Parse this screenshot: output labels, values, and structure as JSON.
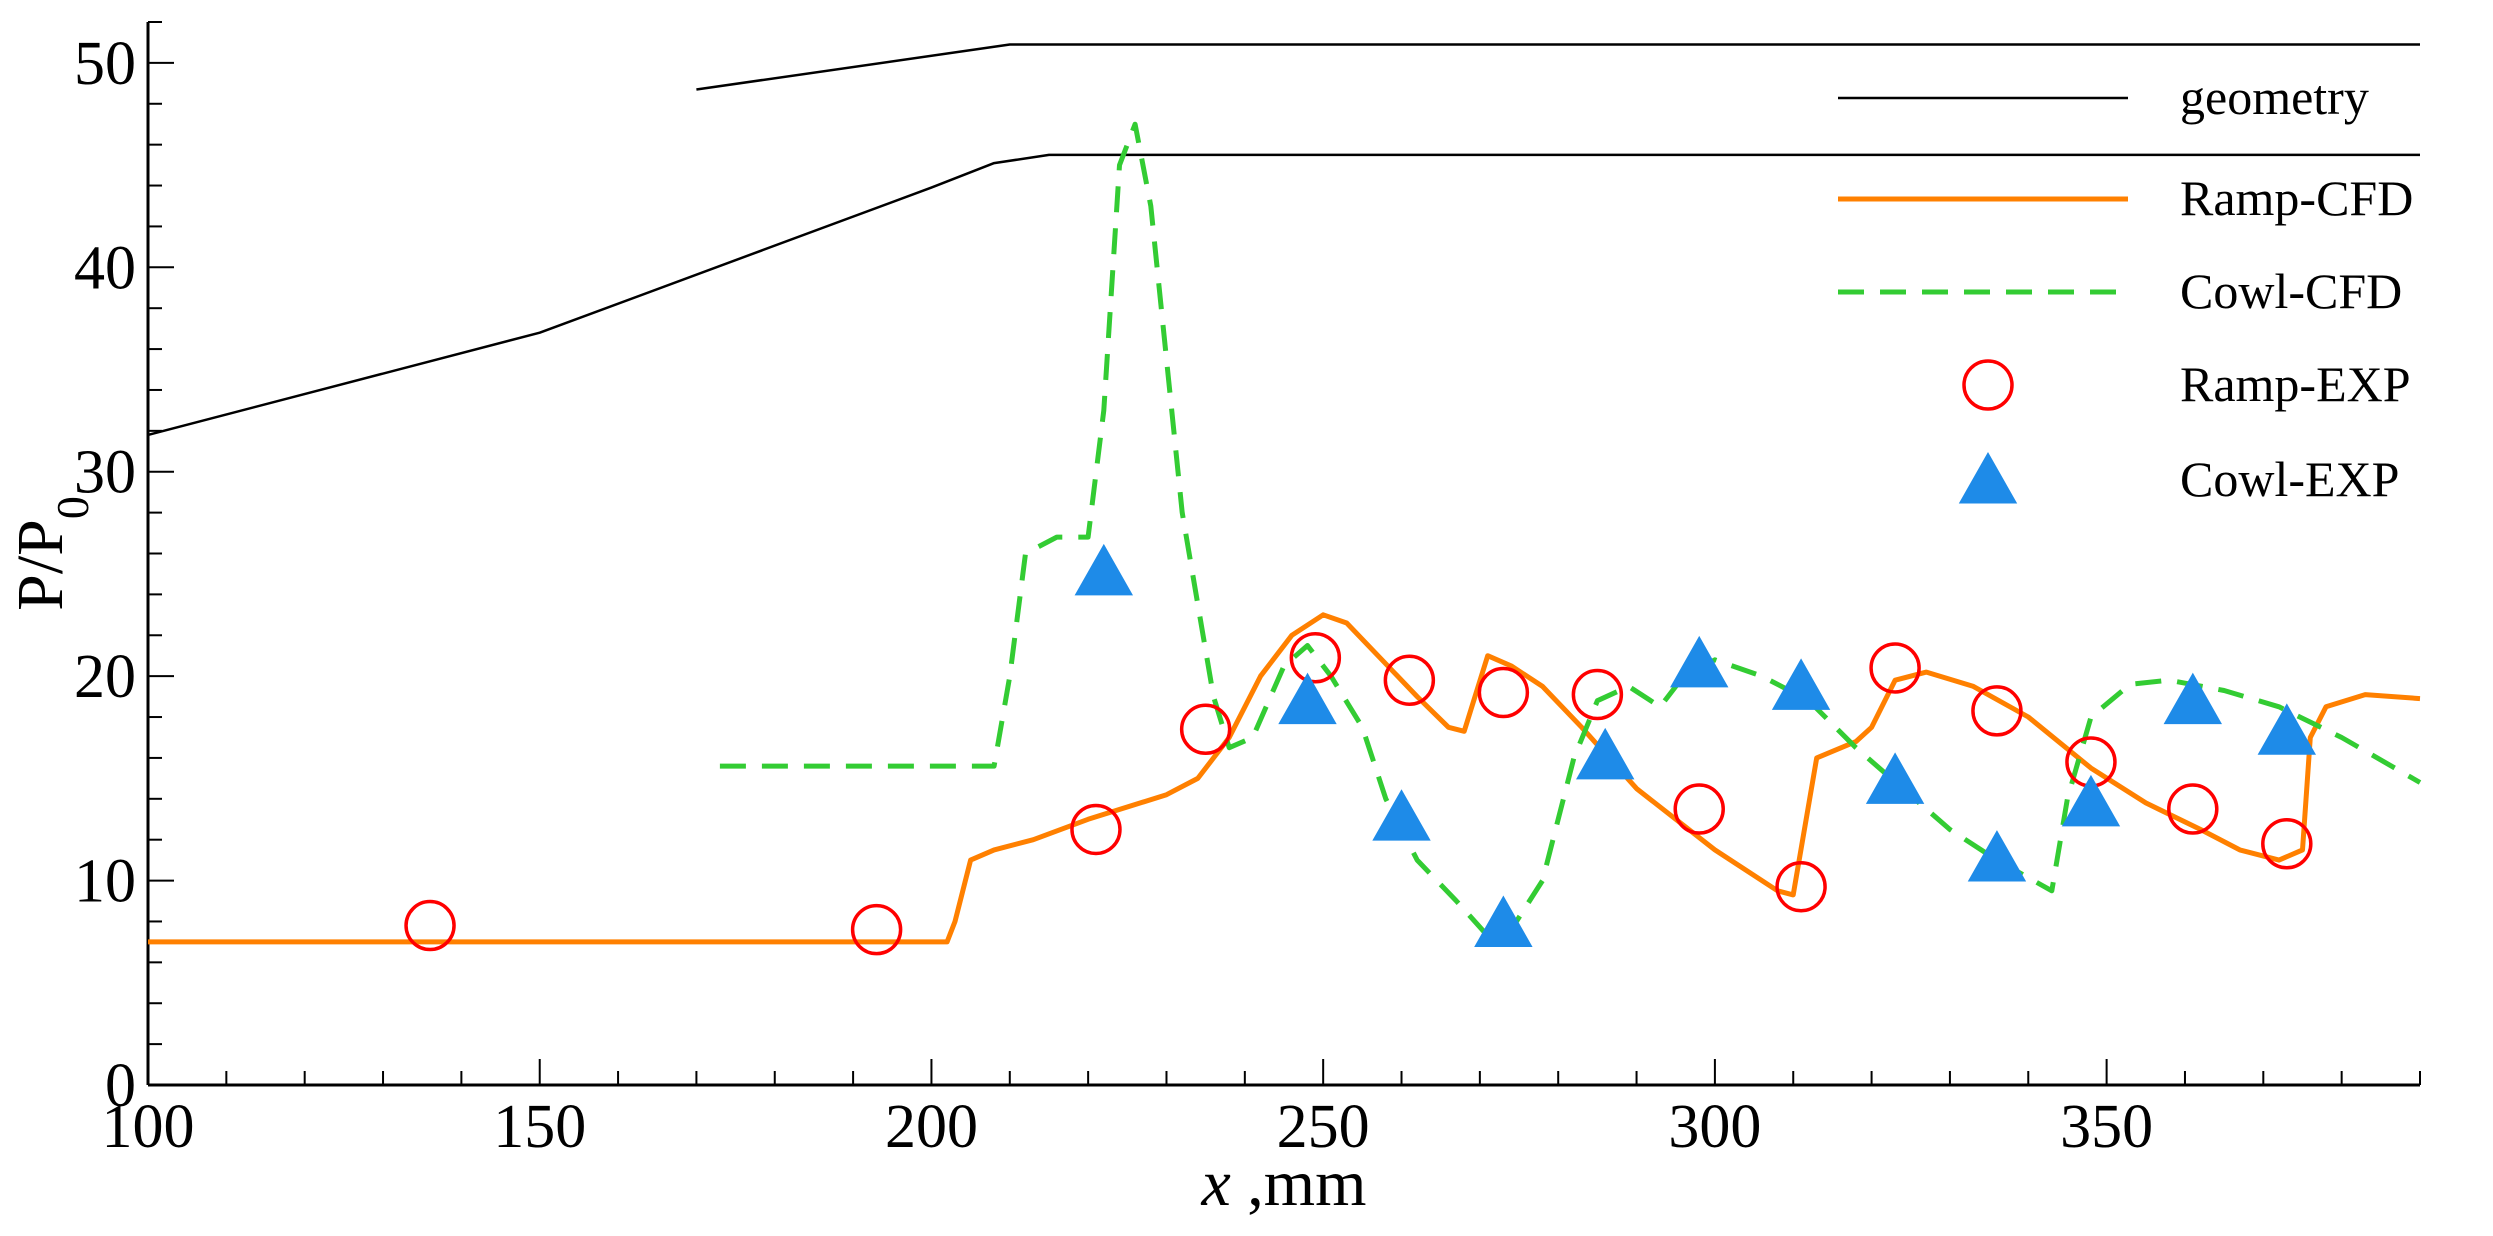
{
  "chart_data": {
    "type": "line",
    "xlabel": "x ,mm",
    "xlabel_var": "x",
    "xlabel_unit": " ,mm",
    "ylabel_main": "P/P",
    "ylabel_sub": "0",
    "xlim": [
      100,
      390
    ],
    "ylim": [
      0,
      52
    ],
    "x_ticks": [
      "100",
      "150",
      "200",
      "250",
      "300",
      "350"
    ],
    "y_ticks": [
      "0",
      "10",
      "20",
      "30",
      "40",
      "50"
    ],
    "x_tick_values": [
      100,
      150,
      200,
      250,
      300,
      350
    ],
    "y_tick_values": [
      0,
      10,
      20,
      30,
      40,
      50
    ],
    "legend_position": "top-right",
    "series": [
      {
        "name": "geometry",
        "kind": "line",
        "color": "#000000",
        "dash": "solid",
        "segments": [
          [
            [
              170,
              48.7
            ],
            [
              210,
              50.9
            ],
            [
              390,
              50.9
            ]
          ],
          [
            [
              100,
              31.8
            ],
            [
              150,
              36.8
            ],
            [
              200,
              43.9
            ],
            [
              208,
              45.1
            ],
            [
              215,
              45.5
            ],
            [
              390,
              45.5
            ]
          ]
        ]
      },
      {
        "name": "Ramp-CFD",
        "kind": "line",
        "color": "#FF8000",
        "dash": "solid",
        "points": [
          [
            100,
            7
          ],
          [
            202,
            7
          ],
          [
            203,
            8
          ],
          [
            205,
            11
          ],
          [
            208,
            11.5
          ],
          [
            213,
            12
          ],
          [
            220,
            13
          ],
          [
            230,
            14.2
          ],
          [
            234,
            15
          ],
          [
            238,
            17
          ],
          [
            242,
            20
          ],
          [
            246,
            22
          ],
          [
            250,
            23
          ],
          [
            253,
            22.6
          ],
          [
            257,
            21
          ],
          [
            262,
            19
          ],
          [
            266,
            17.5
          ],
          [
            268,
            17.3
          ],
          [
            271,
            21
          ],
          [
            274,
            20.5
          ],
          [
            278,
            19.5
          ],
          [
            283,
            17.5
          ],
          [
            290,
            14.5
          ],
          [
            300,
            11.5
          ],
          [
            308,
            9.5
          ],
          [
            310,
            9.3
          ],
          [
            313,
            16
          ],
          [
            318,
            16.8
          ],
          [
            320,
            17.5
          ],
          [
            323,
            19.8
          ],
          [
            327,
            20.2
          ],
          [
            333,
            19.5
          ],
          [
            340,
            18
          ],
          [
            348,
            15.5
          ],
          [
            355,
            13.8
          ],
          [
            362,
            12.5
          ],
          [
            367,
            11.5
          ],
          [
            372,
            11
          ],
          [
            375,
            11.5
          ],
          [
            376,
            17
          ],
          [
            378,
            18.5
          ],
          [
            383,
            19.1
          ],
          [
            390,
            18.9
          ]
        ]
      },
      {
        "name": "Cowl-CFD",
        "kind": "line",
        "color": "#33CC33",
        "dash": "dashed",
        "points": [
          [
            173,
            15.6
          ],
          [
            208,
            15.6
          ],
          [
            210,
            20
          ],
          [
            212,
            26
          ],
          [
            216,
            26.8
          ],
          [
            220,
            26.8
          ],
          [
            222,
            33
          ],
          [
            224,
            45
          ],
          [
            226,
            47
          ],
          [
            228,
            43
          ],
          [
            232,
            28
          ],
          [
            236,
            19
          ],
          [
            238,
            16.5
          ],
          [
            241,
            17
          ],
          [
            245,
            20.5
          ],
          [
            248,
            21.5
          ],
          [
            251,
            20
          ],
          [
            255,
            17.5
          ],
          [
            258,
            14
          ],
          [
            262,
            11
          ],
          [
            267,
            9
          ],
          [
            271,
            7.3
          ],
          [
            274,
            7.6
          ],
          [
            278,
            10
          ],
          [
            282,
            16
          ],
          [
            285,
            18.8
          ],
          [
            289,
            19.5
          ],
          [
            293,
            18.5
          ],
          [
            296,
            20
          ],
          [
            300,
            20.8
          ],
          [
            306,
            20
          ],
          [
            312,
            18.8
          ],
          [
            318,
            16.5
          ],
          [
            324,
            14.5
          ],
          [
            330,
            12.5
          ],
          [
            336,
            11
          ],
          [
            343,
            9.5
          ],
          [
            345,
            14
          ],
          [
            348,
            18
          ],
          [
            353,
            19.6
          ],
          [
            358,
            19.8
          ],
          [
            365,
            19.3
          ],
          [
            372,
            18.5
          ],
          [
            380,
            17
          ],
          [
            390,
            14.8
          ]
        ]
      },
      {
        "name": "Ramp-EXP",
        "kind": "scatter",
        "marker": "circle-open",
        "color": "#FF0000",
        "points": [
          [
            136,
            7.8
          ],
          [
            193,
            7.6
          ],
          [
            221,
            12.5
          ],
          [
            235,
            17.4
          ],
          [
            249,
            20.9
          ],
          [
            261,
            19.8
          ],
          [
            273,
            19.2
          ],
          [
            285,
            19.1
          ],
          [
            298,
            13.5
          ],
          [
            311,
            9.7
          ],
          [
            323,
            20.4
          ],
          [
            336,
            18.3
          ],
          [
            348,
            15.8
          ],
          [
            361,
            13.5
          ],
          [
            373,
            11.8
          ]
        ]
      },
      {
        "name": "Cowl-EXP",
        "kind": "scatter",
        "marker": "triangle-filled",
        "color": "#1E8BE8",
        "points": [
          [
            222,
            25.1
          ],
          [
            248,
            18.8
          ],
          [
            260,
            13.1
          ],
          [
            273,
            7.9
          ],
          [
            286,
            16.1
          ],
          [
            298,
            20.6
          ],
          [
            311,
            19.5
          ],
          [
            323,
            14.9
          ],
          [
            336,
            11.1
          ],
          [
            348,
            13.8
          ],
          [
            361,
            18.8
          ],
          [
            373,
            17.3
          ]
        ]
      }
    ]
  }
}
